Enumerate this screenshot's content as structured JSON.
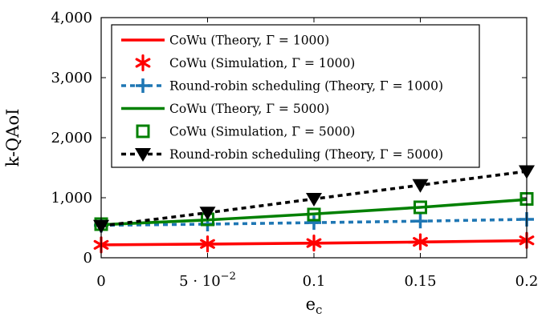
{
  "chart_data": {
    "type": "line",
    "xlabel": "e",
    "xlabel_sub": "c",
    "ylabel": "k-QAoI",
    "xlim": [
      0,
      0.2
    ],
    "ylim": [
      0,
      4000
    ],
    "x_ticks": [
      {
        "value": 0,
        "label": "0"
      },
      {
        "value": 0.05,
        "label": "5 · 10",
        "sup": "−2"
      },
      {
        "value": 0.1,
        "label": "0.1"
      },
      {
        "value": 0.15,
        "label": "0.15"
      },
      {
        "value": 0.2,
        "label": "0.2"
      }
    ],
    "y_ticks": [
      {
        "value": 0,
        "label": "0"
      },
      {
        "value": 1000,
        "label": "1,000"
      },
      {
        "value": 2000,
        "label": "2,000"
      },
      {
        "value": 3000,
        "label": "3,000"
      },
      {
        "value": 4000,
        "label": "4,000"
      }
    ],
    "grid": false,
    "legend_position": "top-right",
    "x": [
      0,
      0.05,
      0.1,
      0.15,
      0.2
    ],
    "series": [
      {
        "name": "CoWu (Theory, Γ = 1000)",
        "values": [
          215,
          228,
          243,
          262,
          285
        ],
        "color": "#ff0000",
        "line": "solid",
        "marker": "none"
      },
      {
        "name": "CoWu (Simulation, Γ = 1000)",
        "values": [
          215,
          230,
          245,
          265,
          290
        ],
        "color": "#ff0000",
        "line": "none",
        "marker": "asterisk"
      },
      {
        "name": "Round-robin scheduling (Theory, Γ = 1000)",
        "values": [
          540,
          560,
          585,
          610,
          640
        ],
        "color": "#1f77b4",
        "line": "dotted",
        "marker": "plus"
      },
      {
        "name": "CoWu (Theory, Γ = 5000)",
        "values": [
          550,
          630,
          730,
          840,
          970
        ],
        "color": "#008000",
        "line": "solid",
        "marker": "none"
      },
      {
        "name": "CoWu (Simulation, Γ = 5000)",
        "values": [
          560,
          640,
          720,
          840,
          980
        ],
        "color": "#008000",
        "line": "none",
        "marker": "square"
      },
      {
        "name": "Round-robin scheduling (Theory, Γ = 5000)",
        "values": [
          530,
          750,
          980,
          1210,
          1440
        ],
        "color": "#000000",
        "line": "dotted",
        "marker": "triangle-down"
      }
    ]
  }
}
